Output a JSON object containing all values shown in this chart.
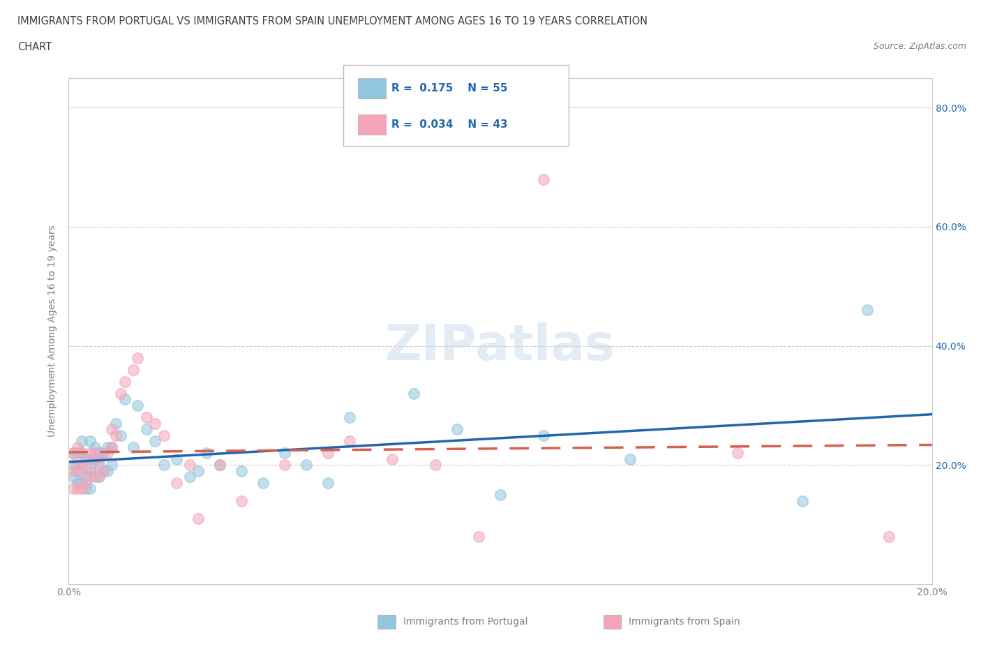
{
  "title_line1": "IMMIGRANTS FROM PORTUGAL VS IMMIGRANTS FROM SPAIN UNEMPLOYMENT AMONG AGES 16 TO 19 YEARS CORRELATION",
  "title_line2": "CHART",
  "source_text": "Source: ZipAtlas.com",
  "ylabel": "Unemployment Among Ages 16 to 19 years",
  "xlim": [
    0.0,
    0.2
  ],
  "ylim": [
    0.0,
    0.85
  ],
  "xticks": [
    0.0,
    0.04,
    0.08,
    0.12,
    0.16,
    0.2
  ],
  "xtick_labels": [
    "0.0%",
    "",
    "",
    "",
    "",
    "20.0%"
  ],
  "right_ytick_labels": [
    "20.0%",
    "40.0%",
    "60.0%",
    "80.0%"
  ],
  "right_yticks": [
    0.2,
    0.4,
    0.6,
    0.8
  ],
  "portugal_R": 0.175,
  "portugal_N": 55,
  "spain_R": 0.034,
  "spain_N": 43,
  "portugal_color": "#92c5de",
  "spain_color": "#f4a4b8",
  "portugal_line_color": "#2166ac",
  "spain_line_color": "#d6604d",
  "watermark_color": "#c8d8ea",
  "watermark": "ZIPatlas",
  "portugal_scatter_x": [
    0.001,
    0.001,
    0.001,
    0.002,
    0.002,
    0.002,
    0.003,
    0.003,
    0.003,
    0.003,
    0.004,
    0.004,
    0.004,
    0.005,
    0.005,
    0.005,
    0.005,
    0.006,
    0.006,
    0.006,
    0.007,
    0.007,
    0.007,
    0.008,
    0.008,
    0.009,
    0.009,
    0.01,
    0.01,
    0.011,
    0.012,
    0.013,
    0.015,
    0.016,
    0.018,
    0.02,
    0.022,
    0.025,
    0.028,
    0.03,
    0.032,
    0.035,
    0.04,
    0.045,
    0.05,
    0.055,
    0.06,
    0.065,
    0.08,
    0.09,
    0.1,
    0.11,
    0.13,
    0.17,
    0.185
  ],
  "portugal_scatter_y": [
    0.18,
    0.2,
    0.22,
    0.17,
    0.19,
    0.22,
    0.17,
    0.2,
    0.22,
    0.24,
    0.16,
    0.18,
    0.21,
    0.16,
    0.19,
    0.21,
    0.24,
    0.18,
    0.21,
    0.23,
    0.18,
    0.2,
    0.22,
    0.19,
    0.22,
    0.19,
    0.23,
    0.2,
    0.23,
    0.27,
    0.25,
    0.31,
    0.23,
    0.3,
    0.26,
    0.24,
    0.2,
    0.21,
    0.18,
    0.19,
    0.22,
    0.2,
    0.19,
    0.17,
    0.22,
    0.2,
    0.17,
    0.28,
    0.32,
    0.26,
    0.15,
    0.25,
    0.21,
    0.14,
    0.46
  ],
  "spain_scatter_x": [
    0.001,
    0.001,
    0.001,
    0.002,
    0.002,
    0.002,
    0.003,
    0.003,
    0.003,
    0.004,
    0.004,
    0.005,
    0.005,
    0.006,
    0.006,
    0.007,
    0.007,
    0.008,
    0.009,
    0.01,
    0.01,
    0.011,
    0.012,
    0.013,
    0.015,
    0.016,
    0.018,
    0.02,
    0.022,
    0.025,
    0.028,
    0.03,
    0.035,
    0.04,
    0.05,
    0.06,
    0.065,
    0.075,
    0.085,
    0.095,
    0.11,
    0.155,
    0.19
  ],
  "spain_scatter_y": [
    0.16,
    0.19,
    0.22,
    0.16,
    0.2,
    0.23,
    0.16,
    0.19,
    0.22,
    0.17,
    0.2,
    0.18,
    0.22,
    0.19,
    0.22,
    0.18,
    0.21,
    0.19,
    0.22,
    0.23,
    0.26,
    0.25,
    0.32,
    0.34,
    0.36,
    0.38,
    0.28,
    0.27,
    0.25,
    0.17,
    0.2,
    0.11,
    0.2,
    0.14,
    0.2,
    0.22,
    0.24,
    0.21,
    0.2,
    0.08,
    0.68,
    0.22,
    0.08
  ],
  "background_color": "#ffffff",
  "grid_color": "#cccccc",
  "title_color": "#404040",
  "axis_color": "#808080"
}
